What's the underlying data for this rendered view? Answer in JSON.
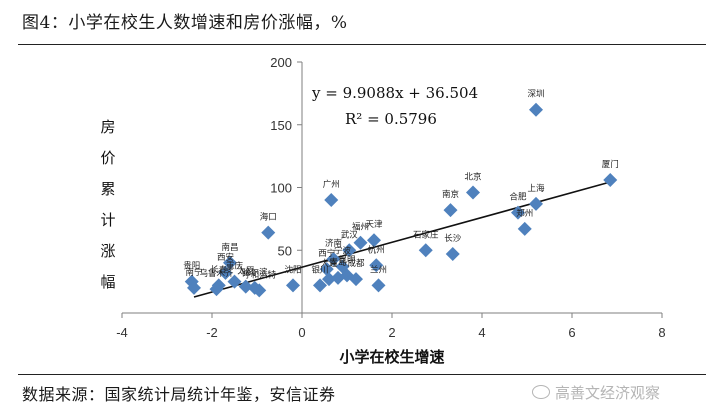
{
  "header": {
    "title": "图4：小学在校生人数增速和房价涨幅，%"
  },
  "footer": {
    "source": "数据来源：国家统计局统计年鉴，安信证券",
    "watermark": "高善文经济观察"
  },
  "chart_data": {
    "type": "scatter",
    "title": "",
    "xlabel": "小学在校生增速",
    "ylabel": "房价累计涨幅",
    "xlim": [
      -4,
      8
    ],
    "ylim": [
      0,
      200
    ],
    "xticks": [
      -4,
      -2,
      0,
      2,
      4,
      6,
      8
    ],
    "yticks": [
      0,
      50,
      100,
      150,
      200
    ],
    "marker_color": "#4f81bd",
    "trendline": {
      "equation": "y = 9.9088x + 36.504",
      "r2": "R² = 0.5796",
      "slope": 9.9088,
      "intercept": 36.504,
      "x_range": [
        -2.4,
        6.85
      ]
    },
    "points": [
      {
        "label": "深圳",
        "x": 5.2,
        "y": 162
      },
      {
        "label": "厦门",
        "x": 6.85,
        "y": 106
      },
      {
        "label": "上海",
        "x": 5.2,
        "y": 87
      },
      {
        "label": "合肥",
        "x": 4.8,
        "y": 80
      },
      {
        "label": "郑州",
        "x": 4.95,
        "y": 67
      },
      {
        "label": "北京",
        "x": 3.8,
        "y": 96
      },
      {
        "label": "南京",
        "x": 3.3,
        "y": 82
      },
      {
        "label": "长沙",
        "x": 3.35,
        "y": 47
      },
      {
        "label": "石家庄",
        "x": 2.75,
        "y": 50
      },
      {
        "label": "广州",
        "x": 0.65,
        "y": 90
      },
      {
        "label": "天津",
        "x": 1.6,
        "y": 58
      },
      {
        "label": "福州",
        "x": 1.3,
        "y": 56
      },
      {
        "label": "武汉",
        "x": 1.05,
        "y": 50
      },
      {
        "label": "杭州",
        "x": 1.65,
        "y": 38
      },
      {
        "label": "济南",
        "x": 0.7,
        "y": 43
      },
      {
        "label": "西宁",
        "x": 0.55,
        "y": 35
      },
      {
        "label": "宁波",
        "x": 0.9,
        "y": 37
      },
      {
        "label": "昆明",
        "x": 1.0,
        "y": 30
      },
      {
        "label": "大连",
        "x": 0.6,
        "y": 27
      },
      {
        "label": "青岛",
        "x": 0.8,
        "y": 28
      },
      {
        "label": "成都",
        "x": 1.2,
        "y": 27
      },
      {
        "label": "银川",
        "x": 0.4,
        "y": 22
      },
      {
        "label": "兰州",
        "x": 1.7,
        "y": 22
      },
      {
        "label": "沈阳",
        "x": -0.2,
        "y": 22
      },
      {
        "label": "海口",
        "x": -0.75,
        "y": 64
      },
      {
        "label": "南昌",
        "x": -1.6,
        "y": 40
      },
      {
        "label": "西安",
        "x": -1.7,
        "y": 32
      },
      {
        "label": "长春",
        "x": -1.85,
        "y": 22
      },
      {
        "label": "重庆",
        "x": -1.5,
        "y": 25
      },
      {
        "label": "哈尔滨",
        "x": -1.05,
        "y": 20
      },
      {
        "label": "呼和浩特",
        "x": -0.95,
        "y": 18
      },
      {
        "label": "太原",
        "x": -1.25,
        "y": 21
      },
      {
        "label": "贵阳",
        "x": -2.45,
        "y": 25
      },
      {
        "label": "南宁",
        "x": -2.4,
        "y": 20
      },
      {
        "label": "乌鲁木齐",
        "x": -1.9,
        "y": 19
      }
    ]
  }
}
